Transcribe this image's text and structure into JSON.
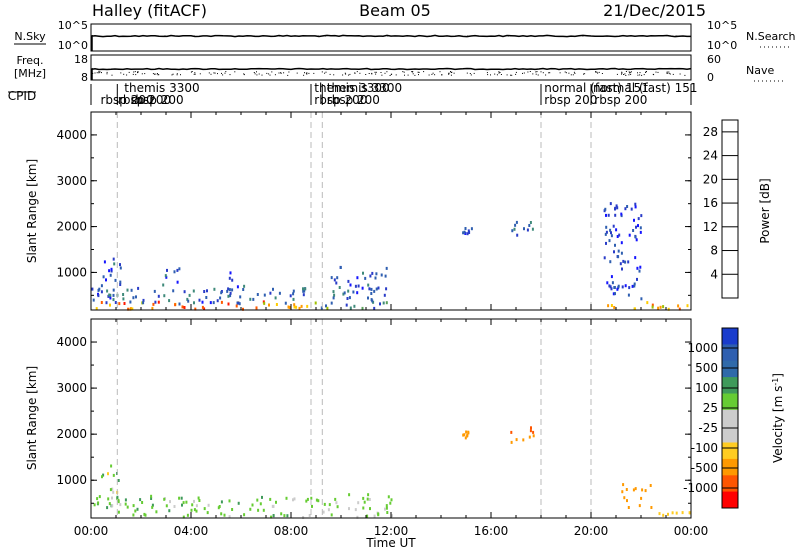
{
  "header": {
    "left": "Halley (fitACF)",
    "center": "Beam 05",
    "right": "21/Dec/2015"
  },
  "panel_noise": {
    "left_label": "N.Sky",
    "right_label": "N.Search",
    "left_ticks": [
      "10^5",
      "10^0"
    ],
    "right_ticks": [
      "10^5",
      "10^0"
    ]
  },
  "panel_freq": {
    "left_label_1": "Freq.",
    "left_label_2": "[MHz]",
    "right_label": "Nave",
    "left_ticks": [
      "18",
      "8"
    ],
    "right_ticks": [
      "60",
      "0"
    ]
  },
  "panel_cpid": {
    "label": "CPID",
    "entries": [
      {
        "text": "rbsp 200",
        "t": 0.3,
        "row": "low"
      },
      {
        "text": "rbsp 200",
        "t": 1.0,
        "row": "low"
      },
      {
        "text": "themis 3300",
        "t": 1.25,
        "row": "high"
      },
      {
        "text": "rbsp 200",
        "t": 1.5,
        "row": "low"
      },
      {
        "text": "themis 3300",
        "t": 8.85,
        "row": "high"
      },
      {
        "text": "rbsp 200",
        "t": 8.85,
        "row": "low"
      },
      {
        "text": "themis 3300",
        "t": 9.35,
        "row": "high"
      },
      {
        "text": "rbsp 200",
        "t": 9.35,
        "row": "low"
      },
      {
        "text": "normal (fast) 151",
        "t": 18.05,
        "row": "high"
      },
      {
        "text": "rbsp 200",
        "t": 18.05,
        "row": "low"
      },
      {
        "text": "normal (fast) 151",
        "t": 20.0,
        "row": "high"
      },
      {
        "text": "rbsp 200",
        "t": 20.05,
        "row": "low"
      }
    ],
    "mode_changes": [
      1.05,
      8.8,
      9.25,
      18.0,
      20.0
    ]
  },
  "colors": {
    "power_scale": [
      "#1515ff",
      "#2a3cc8",
      "#2f5fb0",
      "#3f8a7a",
      "#5aa05a",
      "#a0c000",
      "#ffcc00",
      "#ff9900",
      "#ff5a00",
      "#ff1a00"
    ],
    "velocity_scale": [
      "#ff0000",
      "#ff4400",
      "#ff8800",
      "#ffbb00",
      "#cccccc",
      "#cccccc",
      "#66cc33",
      "#44aa44",
      "#3a7a8a",
      "#2b4faa",
      "#1a3ccc"
    ]
  },
  "chart_data": [
    {
      "type": "heatmap",
      "title": "Power",
      "xlabel": "",
      "ylabel": "Slant Range [km]",
      "xlim": [
        0,
        24
      ],
      "ylim": [
        180,
        4500
      ],
      "yticks": [
        "1000",
        "2000",
        "3000",
        "4000"
      ],
      "colorbar_label": "Power [dB]",
      "colorbar_ticks": [
        "4",
        "8",
        "12",
        "16",
        "20",
        "24",
        "28"
      ],
      "colorbar_range": [
        0,
        30
      ],
      "regions": [
        {
          "t": [
            0.0,
            8.8
          ],
          "r": [
            180,
            350
          ],
          "v": [
            16,
            30
          ]
        },
        {
          "t": [
            0.0,
            8.8
          ],
          "r": [
            300,
            650
          ],
          "v": [
            2,
            12
          ]
        },
        {
          "t": [
            0.3,
            1.2
          ],
          "r": [
            600,
            1300
          ],
          "v": [
            2,
            10
          ]
        },
        {
          "t": [
            2.8,
            3.6
          ],
          "r": [
            700,
            1100
          ],
          "v": [
            2,
            12
          ]
        },
        {
          "t": [
            5.5,
            6.2
          ],
          "r": [
            600,
            1000
          ],
          "v": [
            2,
            10
          ]
        },
        {
          "t": [
            8.8,
            12.0
          ],
          "r": [
            180,
            350
          ],
          "v": [
            4,
            16
          ]
        },
        {
          "t": [
            9.5,
            11.8
          ],
          "r": [
            350,
            1100
          ],
          "v": [
            2,
            10
          ]
        },
        {
          "t": [
            14.8,
            15.2
          ],
          "r": [
            1700,
            2000
          ],
          "v": [
            2,
            8
          ]
        },
        {
          "t": [
            16.6,
            17.8
          ],
          "r": [
            1800,
            2150
          ],
          "v": [
            4,
            12
          ]
        },
        {
          "t": [
            20.5,
            22.0
          ],
          "r": [
            400,
            2500
          ],
          "v": [
            2,
            8
          ]
        },
        {
          "t": [
            20.5,
            24.0
          ],
          "r": [
            180,
            350
          ],
          "v": [
            16,
            26
          ]
        }
      ]
    },
    {
      "type": "heatmap",
      "title": "Velocity",
      "xlabel": "Time UT",
      "ylabel": "Slant Range [km]",
      "xlim": [
        0,
        24
      ],
      "ylim": [
        180,
        4500
      ],
      "xticks": [
        "00:00",
        "04:00",
        "08:00",
        "12:00",
        "16:00",
        "20:00",
        "00:00"
      ],
      "yticks": [
        "1000",
        "2000",
        "3000",
        "4000"
      ],
      "colorbar_label": "Velocity [m s^-1]",
      "colorbar_ticks": [
        "1000",
        "500",
        "100",
        "25",
        "-25",
        "-100",
        "-500",
        "-1000"
      ],
      "regions": [
        {
          "t": [
            0.0,
            8.8
          ],
          "r": [
            180,
            650
          ],
          "v": [
            0,
            120
          ]
        },
        {
          "t": [
            0.3,
            1.2
          ],
          "r": [
            600,
            1300
          ],
          "v": [
            -50,
            200
          ]
        },
        {
          "t": [
            8.8,
            12.0
          ],
          "r": [
            180,
            700
          ],
          "v": [
            -20,
            100
          ]
        },
        {
          "t": [
            16.6,
            17.8
          ],
          "r": [
            1800,
            2150
          ],
          "v": [
            -1000,
            -300
          ]
        },
        {
          "t": [
            14.8,
            15.2
          ],
          "r": [
            1900,
            2050
          ],
          "v": [
            -500,
            -200
          ]
        },
        {
          "t": [
            21.2,
            22.4
          ],
          "r": [
            350,
            900
          ],
          "v": [
            -500,
            -100
          ]
        },
        {
          "t": [
            22.0,
            24.0
          ],
          "r": [
            180,
            320
          ],
          "v": [
            -100,
            -25
          ]
        }
      ]
    }
  ]
}
